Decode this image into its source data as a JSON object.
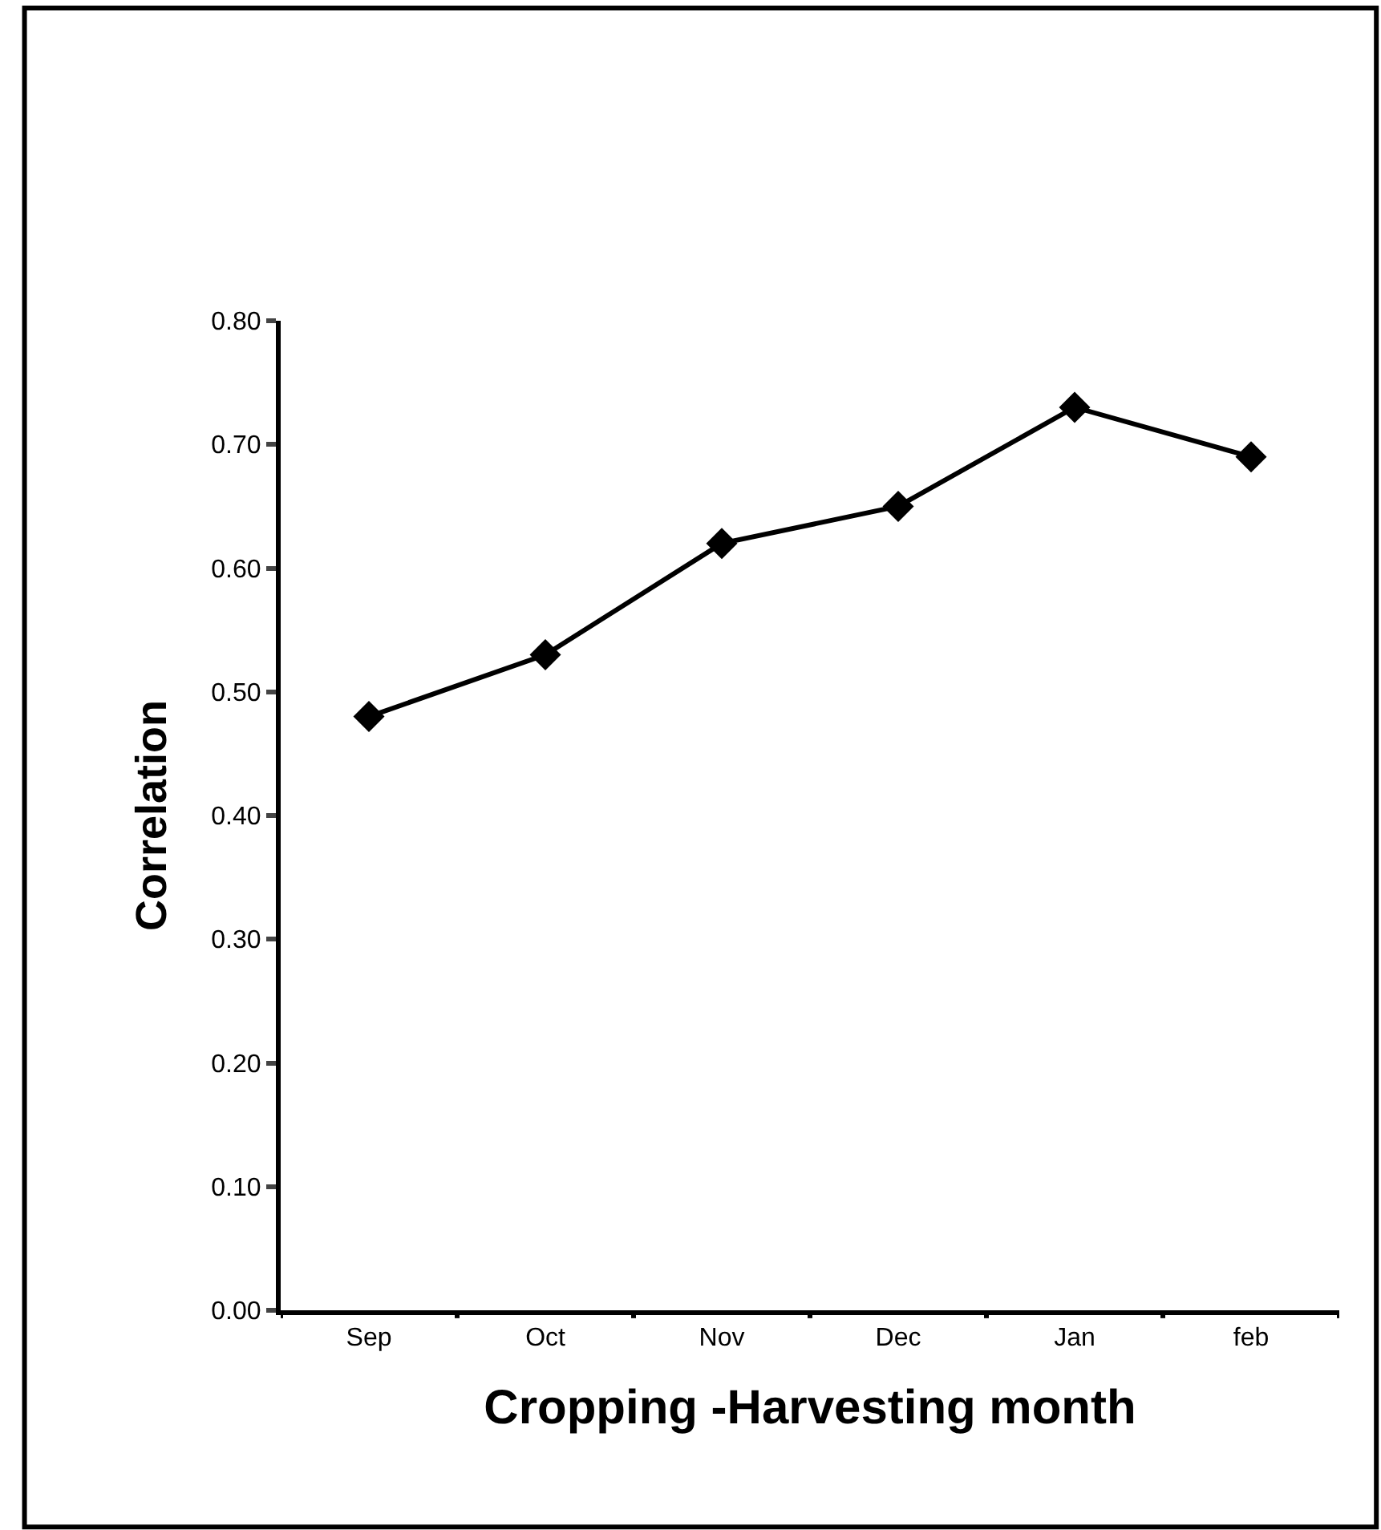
{
  "chart_data": {
    "type": "line",
    "xlabel": "Cropping -Harvesting month",
    "ylabel": "Correlation",
    "categories": [
      "Sep",
      "Oct",
      "Nov",
      "Dec",
      "Jan",
      "feb"
    ],
    "series": [
      {
        "color": "#000000",
        "values": [
          0.48,
          0.53,
          0.62,
          0.65,
          0.73,
          0.69
        ]
      }
    ],
    "ylim": [
      0,
      0.8
    ],
    "yticks": [
      {
        "value": 0,
        "label": "0.00"
      },
      {
        "value": 0.1,
        "label": "0.10"
      },
      {
        "value": 0.2,
        "label": "0.20"
      },
      {
        "value": 0.3,
        "label": "0.30"
      },
      {
        "value": 0.4,
        "label": "0.40"
      },
      {
        "value": 0.5,
        "label": "0.50"
      },
      {
        "value": 0.6,
        "label": "0.60"
      },
      {
        "value": 0.7,
        "label": "0.70"
      },
      {
        "value": 0.8,
        "label": "0.80"
      }
    ],
    "marker": "diamond",
    "line_style": "solid"
  }
}
